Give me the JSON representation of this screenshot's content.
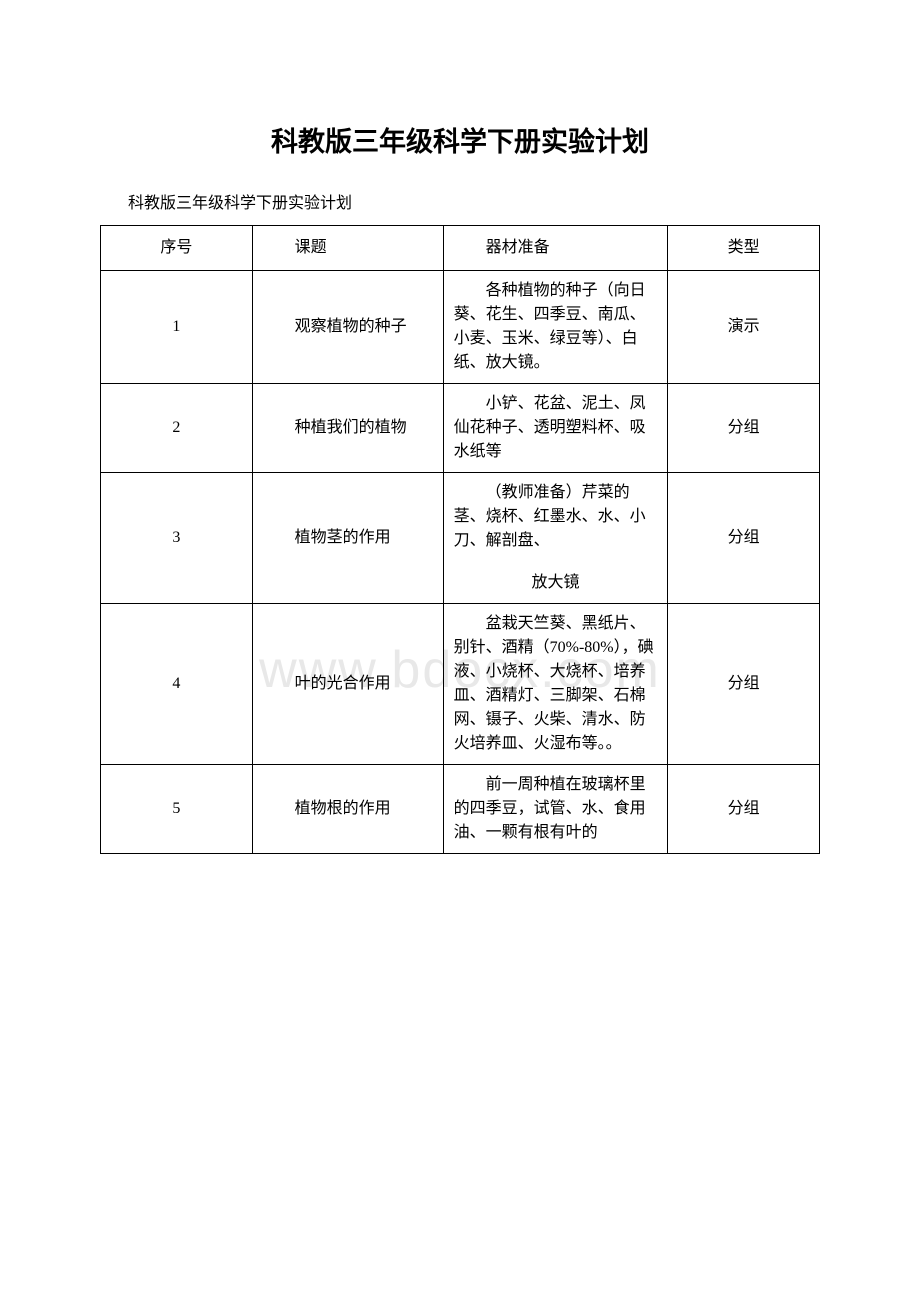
{
  "title": "科教版三年级科学下册实验计划",
  "subtitle": "科教版三年级科学下册实验计划",
  "watermark": "www.bdocx.com",
  "headers": {
    "num": "序号",
    "topic": "课题",
    "materials": "器材准备",
    "type": "类型"
  },
  "rows": [
    {
      "num": "1",
      "topic": "观察植物的种子",
      "materials": "各种植物的种子（向日葵、花生、四季豆、南瓜、小麦、玉米、绿豆等）、白纸、放大镜。",
      "type": "演示"
    },
    {
      "num": "2",
      "topic": "种植我们的植物",
      "materials": "小铲、花盆、泥土、凤仙花种子、透明塑料杯、吸水纸等",
      "type": "分组"
    },
    {
      "num": "3",
      "topic": "植物茎的作用",
      "materials": "（教师准备）芹菜的茎、烧杯、红墨水、水、小刀、解剖盘、",
      "materials_extra": "放大镜",
      "type": "分组"
    },
    {
      "num": "4",
      "topic": "叶的光合作用",
      "materials": "盆栽天竺葵、黑纸片、别针、酒精（70%-80%），碘液、小烧杯、大烧杯、培养皿、酒精灯、三脚架、石棉网、镊子、火柴、清水、防火培养皿、火湿布等。。",
      "type": "分组"
    },
    {
      "num": "5",
      "topic": "植物根的作用",
      "materials": "前一周种植在玻璃杯里的四季豆，试管、水、食用油、一颗有根有叶的",
      "type": "分组"
    }
  ]
}
